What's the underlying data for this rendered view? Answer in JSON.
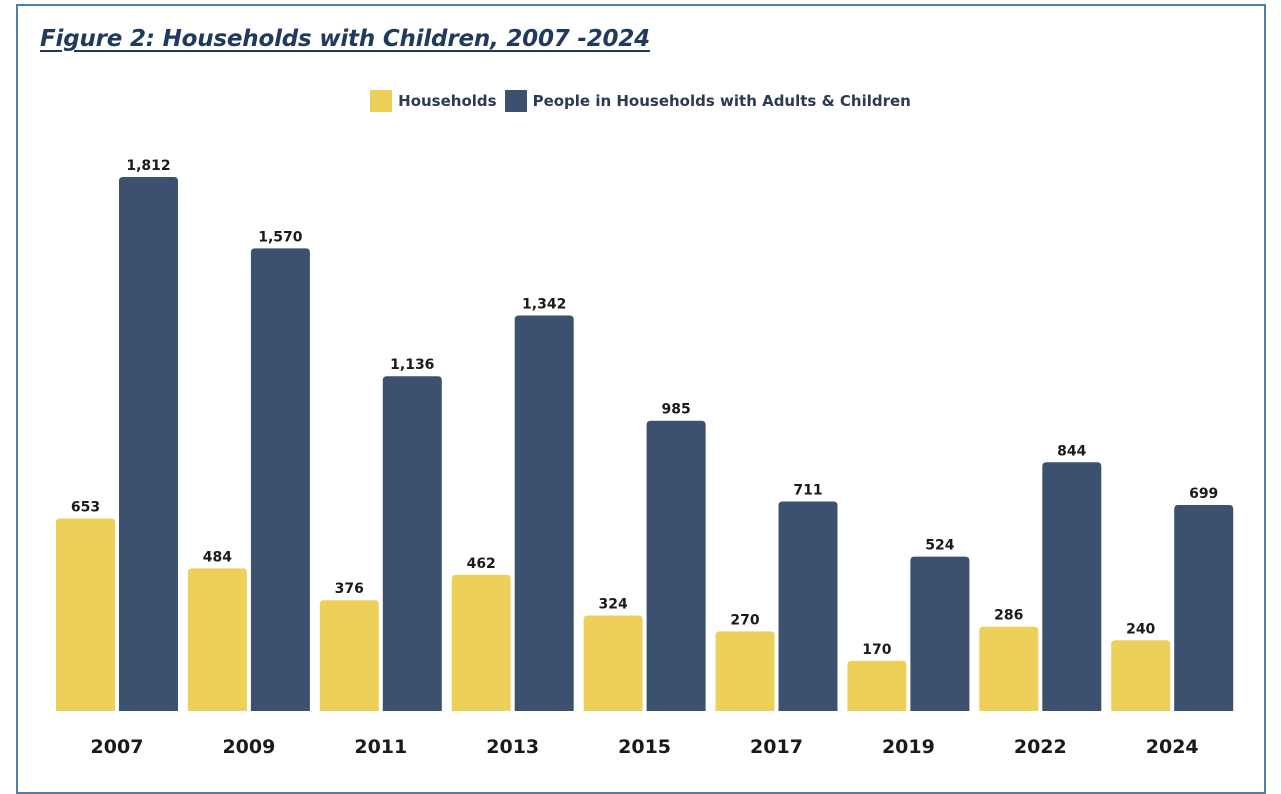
{
  "figure": {
    "title": "Figure 2: Households with Children, 2007 -2024"
  },
  "colors": {
    "households": "#ecd05a",
    "people": "#3c5070",
    "label_text": "#1a1a1a",
    "border": "#4d7fa8"
  },
  "chart_data": {
    "type": "bar",
    "title": "Figure 2: Households with Children, 2007 -2024",
    "xlabel": "",
    "ylabel": "",
    "categories": [
      "2007",
      "2009",
      "2011",
      "2013",
      "2015",
      "2017",
      "2019",
      "2022",
      "2024"
    ],
    "series": [
      {
        "name": "Households",
        "values": [
          653,
          484,
          376,
          462,
          324,
          270,
          170,
          286,
          240
        ],
        "labels": [
          "653",
          "484",
          "376",
          "462",
          "324",
          "270",
          "170",
          "286",
          "240"
        ]
      },
      {
        "name": "People in Households with Adults & Children",
        "values": [
          1812,
          1570,
          1136,
          1342,
          985,
          711,
          524,
          844,
          699
        ],
        "labels": [
          "1,812",
          "1,570",
          "1,136",
          "1,342",
          "985",
          "711",
          "524",
          "844",
          "699"
        ]
      }
    ],
    "ylim": [
      0,
      1812
    ],
    "grid": false,
    "legend_position": "top-center"
  }
}
